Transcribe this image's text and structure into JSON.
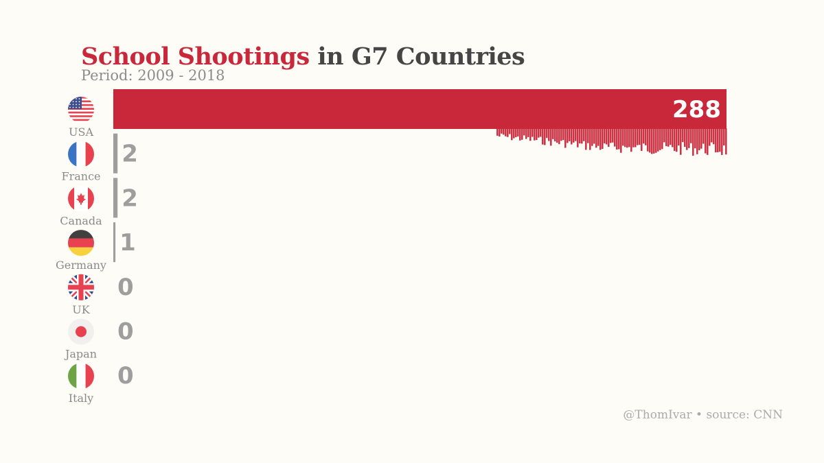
{
  "title": {
    "highlight": "School Shootings",
    "rest": "in G7 Countries"
  },
  "subtitle": "Period: 2009 - 2018",
  "credit": "@ThomIvar • source: CNN",
  "colors": {
    "bar_leader": "#c8283a",
    "bar_other": "#9e9e9e",
    "label": "#8a8a8a",
    "title_accent": "#c8283a",
    "title_dark": "#454545"
  },
  "chart_data": {
    "type": "bar",
    "orientation": "horizontal",
    "title": "School Shootings in G7 Countries",
    "subtitle": "Period: 2009 - 2018",
    "categories": [
      "USA",
      "France",
      "Canada",
      "Germany",
      "UK",
      "Japan",
      "Italy"
    ],
    "values": [
      288,
      2,
      2,
      1,
      0,
      0,
      0
    ],
    "value_labels": [
      "288",
      "2",
      "2",
      "1",
      "0",
      "0",
      "0"
    ],
    "flags": [
      "us-flag-icon",
      "france-flag-icon",
      "canada-flag-icon",
      "germany-flag-icon",
      "uk-flag-icon",
      "japan-flag-icon",
      "italy-flag-icon"
    ],
    "xlim": [
      0,
      288
    ],
    "grid": false,
    "legend": "none"
  }
}
